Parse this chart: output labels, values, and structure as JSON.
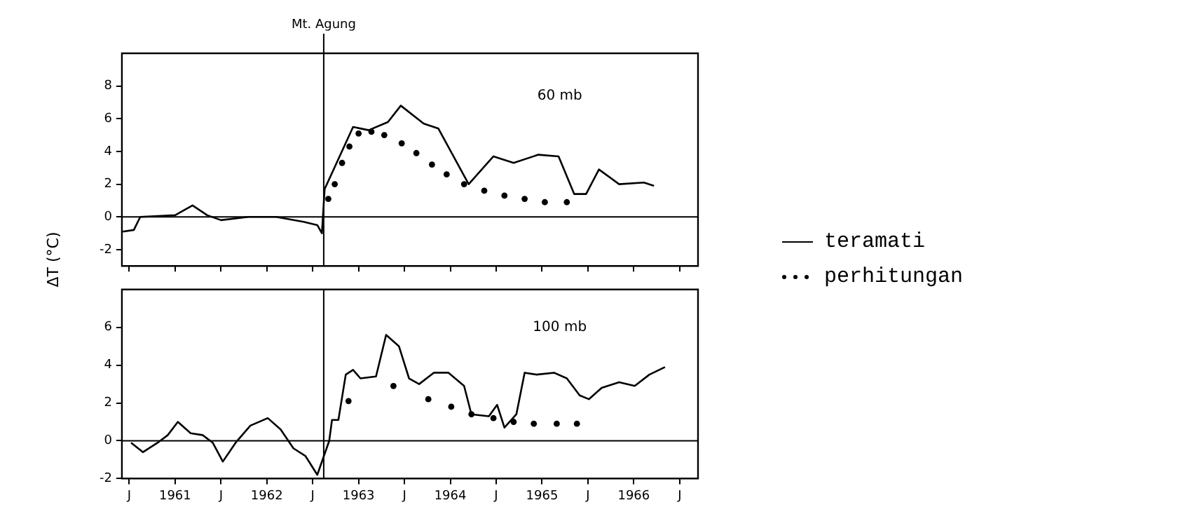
{
  "chart_data": [
    {
      "type": "line",
      "ylabel": "ΔT (°C)",
      "annotations": [
        "60 mb"
      ],
      "xlim": [
        1960.92,
        1967.2
      ],
      "ylim": [
        -3,
        10
      ],
      "yticks": [
        -2,
        0,
        2,
        4,
        6,
        8
      ],
      "xticks": [
        {
          "value": 1961,
          "label": null
        },
        {
          "value": 1961.5,
          "label": null
        },
        {
          "value": 1962,
          "label": null
        },
        {
          "value": 1962.5,
          "label": null
        },
        {
          "value": 1963,
          "label": null
        },
        {
          "value": 1963.5,
          "label": null
        },
        {
          "value": 1964,
          "label": null
        },
        {
          "value": 1964.5,
          "label": null
        },
        {
          "value": 1965,
          "label": null
        },
        {
          "value": 1965.5,
          "label": null
        },
        {
          "value": 1966,
          "label": null
        },
        {
          "value": 1966.5,
          "label": null
        },
        {
          "value": 1967,
          "label": null
        }
      ],
      "tick_labels": "y",
      "grid": false,
      "legend": "right",
      "ref_lines": [
        {
          "axis": "x",
          "value": 1963.12,
          "label": "Mt. Agung",
          "color": "#000000",
          "line_style": "solid"
        },
        {
          "axis": "y",
          "value": 0,
          "color": "#000000",
          "line_style": "solid"
        }
      ],
      "series": [
        {
          "name": "teramati",
          "color": "#000000",
          "line_style": "solid",
          "marker": "none",
          "x": [
            1960.93,
            1961.05,
            1961.12,
            1961.5,
            1961.69,
            1961.85,
            1962.0,
            1962.3,
            1962.6,
            1962.9,
            1963.05,
            1963.1,
            1963.13,
            1963.44,
            1963.61,
            1963.82,
            1963.96,
            1964.21,
            1964.37,
            1964.7,
            1964.97,
            1965.19,
            1965.46,
            1965.68,
            1965.85,
            1965.98,
            1966.12,
            1966.34,
            1966.61,
            1966.72
          ],
          "values": [
            -0.9,
            -0.8,
            0,
            0.1,
            0.7,
            0.1,
            -0.2,
            0,
            0,
            -0.3,
            -0.5,
            -1.0,
            1.7,
            5.5,
            5.3,
            5.8,
            6.8,
            5.7,
            5.4,
            2.0,
            3.7,
            3.3,
            3.8,
            3.7,
            1.4,
            1.4,
            2.9,
            2.0,
            2.1,
            1.9
          ]
        },
        {
          "name": "perhitungan",
          "type": "scatter",
          "color": "#000000",
          "marker": "circle",
          "x": [
            1963.17,
            1963.24,
            1963.32,
            1963.4,
            1963.5,
            1963.64,
            1963.78,
            1963.97,
            1964.13,
            1964.3,
            1964.46,
            1964.65,
            1964.87,
            1965.09,
            1965.31,
            1965.53,
            1965.77
          ],
          "values": [
            1.1,
            2.0,
            3.3,
            4.3,
            5.1,
            5.2,
            5.0,
            4.5,
            3.9,
            3.2,
            2.6,
            2.0,
            1.6,
            1.3,
            1.1,
            0.9,
            0.9
          ]
        }
      ]
    },
    {
      "type": "line",
      "annotations": [
        "100 mb"
      ],
      "xlim": [
        1960.92,
        1967.2
      ],
      "ylim": [
        -2,
        8
      ],
      "yticks": [
        -2,
        0,
        2,
        4,
        6
      ],
      "xticks": [
        {
          "value": 1961,
          "label": "J"
        },
        {
          "value": 1961.5,
          "label": "1961"
        },
        {
          "value": 1962,
          "label": "J"
        },
        {
          "value": 1962.5,
          "label": "1962"
        },
        {
          "value": 1963,
          "label": "J"
        },
        {
          "value": 1963.5,
          "label": "1963"
        },
        {
          "value": 1964,
          "label": "J"
        },
        {
          "value": 1964.5,
          "label": "1964"
        },
        {
          "value": 1965,
          "label": "J"
        },
        {
          "value": 1965.5,
          "label": "1965"
        },
        {
          "value": 1966,
          "label": "J"
        },
        {
          "value": 1966.5,
          "label": "1966"
        },
        {
          "value": 1967,
          "label": "J"
        }
      ],
      "grid": false,
      "ref_lines": [
        {
          "axis": "x",
          "value": 1963.12,
          "color": "#000000",
          "line_style": "solid"
        },
        {
          "axis": "y",
          "value": 0,
          "color": "#000000",
          "line_style": "solid"
        }
      ],
      "series": [
        {
          "color": "#000000",
          "line_style": "solid",
          "marker": "none",
          "x": [
            1961.02,
            1961.15,
            1961.31,
            1961.42,
            1961.53,
            1961.67,
            1961.8,
            1961.91,
            1962.02,
            1962.16,
            1962.32,
            1962.51,
            1962.65,
            1962.79,
            1962.92,
            1963.05,
            1963.18,
            1963.21,
            1963.28,
            1963.36,
            1963.44,
            1963.52,
            1963.69,
            1963.8,
            1963.94,
            1964.05,
            1964.16,
            1964.32,
            1964.48,
            1964.65,
            1964.73,
            1964.92,
            1965.01,
            1965.09,
            1965.22,
            1965.31,
            1965.44,
            1965.63,
            1965.77,
            1965.91,
            1966.01,
            1966.15,
            1966.34,
            1966.51,
            1966.67,
            1966.84
          ],
          "values": [
            -0.1,
            -0.6,
            -0.1,
            0.3,
            1.0,
            0.4,
            0.3,
            -0.1,
            -1.1,
            -0.1,
            0.8,
            1.2,
            0.6,
            -0.4,
            -0.8,
            -1.8,
            0,
            1.1,
            1.1,
            3.5,
            3.75,
            3.3,
            3.4,
            5.6,
            5.0,
            3.3,
            3.0,
            3.6,
            3.6,
            2.9,
            1.4,
            1.3,
            1.9,
            0.7,
            1.4,
            3.6,
            3.5,
            3.6,
            3.3,
            2.4,
            2.2,
            2.8,
            3.1,
            2.9,
            3.5,
            3.9
          ]
        },
        {
          "type": "scatter",
          "color": "#000000",
          "marker": "circle",
          "x": [
            1963.39,
            1963.88,
            1964.26,
            1964.51,
            1964.73,
            1964.97,
            1965.19,
            1965.41,
            1965.66,
            1965.88
          ],
          "values": [
            2.1,
            2.9,
            2.2,
            1.8,
            1.4,
            1.2,
            1.0,
            0.9,
            0.9,
            0.9
          ]
        }
      ]
    }
  ]
}
